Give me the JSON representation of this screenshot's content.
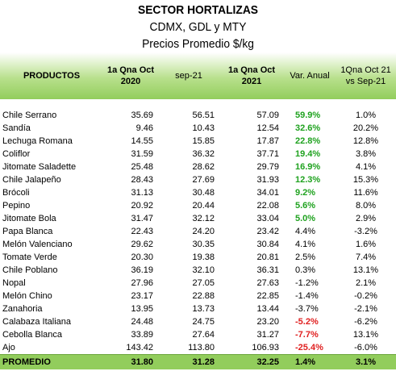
{
  "title": "SECTOR HORTALIZAS",
  "subtitle1": "CDMX, GDL y MTY",
  "subtitle2": "Precios Promedio $/kg",
  "headers": {
    "product": "PRODUCTOS",
    "col1_line1": "1a Qna Oct",
    "col1_line2": "2020",
    "col2": "sep-21",
    "col3_line1": "1a Qna Oct",
    "col3_line2": "2021",
    "col4": "Var. Anual",
    "col5_line1": "1Qna Oct 21",
    "col5_line2": "vs Sep-21"
  },
  "rows": [
    {
      "name": "Chile Serrano",
      "oct2020": "35.69",
      "sep21": "56.51",
      "oct2021": "57.09",
      "var": "59.9%",
      "var_type": "pos",
      "vs_sep": "1.0%"
    },
    {
      "name": "Sandía",
      "oct2020": "9.46",
      "sep21": "10.43",
      "oct2021": "12.54",
      "var": "32.6%",
      "var_type": "pos",
      "vs_sep": "20.2%"
    },
    {
      "name": "Lechuga Romana",
      "oct2020": "14.55",
      "sep21": "15.85",
      "oct2021": "17.87",
      "var": "22.8%",
      "var_type": "pos",
      "vs_sep": "12.8%"
    },
    {
      "name": "Coliflor",
      "oct2020": "31.59",
      "sep21": "36.32",
      "oct2021": "37.71",
      "var": "19.4%",
      "var_type": "pos",
      "vs_sep": "3.8%"
    },
    {
      "name": "Jitomate Saladette",
      "oct2020": "25.48",
      "sep21": "28.62",
      "oct2021": "29.79",
      "var": "16.9%",
      "var_type": "pos",
      "vs_sep": "4.1%"
    },
    {
      "name": "Chile Jalapeño",
      "oct2020": "28.43",
      "sep21": "27.69",
      "oct2021": "31.93",
      "var": "12.3%",
      "var_type": "pos",
      "vs_sep": "15.3%"
    },
    {
      "name": "Brócoli",
      "oct2020": "31.13",
      "sep21": "30.48",
      "oct2021": "34.01",
      "var": "9.2%",
      "var_type": "pos",
      "vs_sep": "11.6%"
    },
    {
      "name": "Pepino",
      "oct2020": "20.92",
      "sep21": "20.44",
      "oct2021": "22.08",
      "var": "5.6%",
      "var_type": "pos",
      "vs_sep": "8.0%"
    },
    {
      "name": "Jitomate Bola",
      "oct2020": "31.47",
      "sep21": "32.12",
      "oct2021": "33.04",
      "var": "5.0%",
      "var_type": "pos",
      "vs_sep": "2.9%"
    },
    {
      "name": "Papa Blanca",
      "oct2020": "22.43",
      "sep21": "24.20",
      "oct2021": "23.42",
      "var": "4.4%",
      "var_type": "neu",
      "vs_sep": "-3.2%"
    },
    {
      "name": "Melón Valenciano",
      "oct2020": "29.62",
      "sep21": "30.35",
      "oct2021": "30.84",
      "var": "4.1%",
      "var_type": "neu",
      "vs_sep": "1.6%"
    },
    {
      "name": "Tomate Verde",
      "oct2020": "20.30",
      "sep21": "19.38",
      "oct2021": "20.81",
      "var": "2.5%",
      "var_type": "neu",
      "vs_sep": "7.4%"
    },
    {
      "name": "Chile Poblano",
      "oct2020": "36.19",
      "sep21": "32.10",
      "oct2021": "36.31",
      "var": "0.3%",
      "var_type": "neu",
      "vs_sep": "13.1%"
    },
    {
      "name": "Nopal",
      "oct2020": "27.96",
      "sep21": "27.05",
      "oct2021": "27.63",
      "var": "-1.2%",
      "var_type": "neu",
      "vs_sep": "2.1%"
    },
    {
      "name": "Melón Chino",
      "oct2020": "23.17",
      "sep21": "22.88",
      "oct2021": "22.85",
      "var": "-1.4%",
      "var_type": "neu",
      "vs_sep": "-0.2%"
    },
    {
      "name": "Zanahoria",
      "oct2020": "13.95",
      "sep21": "13.73",
      "oct2021": "13.44",
      "var": "-3.7%",
      "var_type": "neu",
      "vs_sep": "-2.1%"
    },
    {
      "name": "Calabaza Italiana",
      "oct2020": "24.48",
      "sep21": "24.75",
      "oct2021": "23.20",
      "var": "-5.2%",
      "var_type": "neg",
      "vs_sep": "-6.2%"
    },
    {
      "name": "Cebolla Blanca",
      "oct2020": "33.89",
      "sep21": "27.64",
      "oct2021": "31.27",
      "var": "-7.7%",
      "var_type": "neg",
      "vs_sep": "13.1%"
    },
    {
      "name": "Ajo",
      "oct2020": "143.42",
      "sep21": "113.80",
      "oct2021": "106.93",
      "var": "-25.4%",
      "var_type": "neg",
      "vs_sep": "-6.0%"
    }
  ],
  "footer": {
    "label": "PROMEDIO",
    "oct2020": "31.80",
    "sep21": "31.28",
    "oct2021": "32.25",
    "var": "1.4%",
    "vs_sep": "3.1%"
  },
  "colors": {
    "header_green": "#92cd5c",
    "positive": "#1fa21f",
    "negative": "#e02020"
  }
}
